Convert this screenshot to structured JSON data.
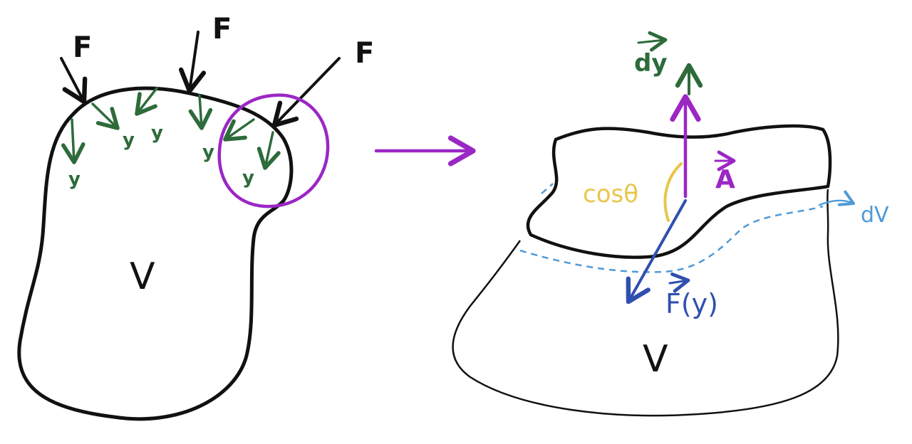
{
  "left": {
    "force_label": "F",
    "component_label": "y",
    "volume_label": "V"
  },
  "right": {
    "dy_label": "dy",
    "area_label": "A",
    "angle_label": "cosθ",
    "force_label": "F(y)",
    "dv_label": "dV",
    "volume_label": "V"
  },
  "colors": {
    "outline": "#111111",
    "green": "#2e6b3a",
    "purple": "#9b27c4",
    "yellow": "#e8c64a",
    "blue": "#2f4fb0",
    "light_blue": "#4f9ad6"
  }
}
